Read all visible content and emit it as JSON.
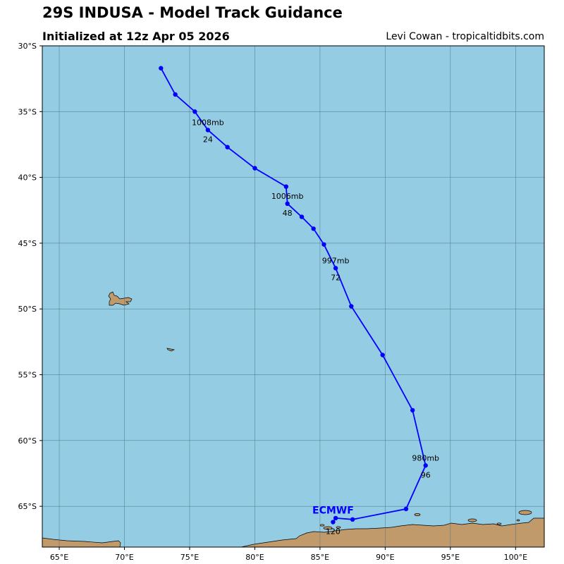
{
  "header": {
    "title": "29S INDUSA - Model Track Guidance",
    "subtitle": "Initialized at 12z Apr 05 2026",
    "credit": "Levi Cowan - tropicaltidbits.com"
  },
  "colors": {
    "ocean": "#94cde3",
    "land": "#c19a6b",
    "grid": "#4a6f80",
    "track": "#0000ff"
  },
  "map": {
    "lon_range": [
      63.7,
      102.2
    ],
    "lat_range": [
      -68.1,
      -30.0
    ],
    "lon_ticks": [
      {
        "v": 65,
        "label": "65°E"
      },
      {
        "v": 70,
        "label": "70°E"
      },
      {
        "v": 75,
        "label": "75°E"
      },
      {
        "v": 80,
        "label": "80°E"
      },
      {
        "v": 85,
        "label": "85°E"
      },
      {
        "v": 90,
        "label": "90°E"
      },
      {
        "v": 95,
        "label": "95°E"
      },
      {
        "v": 100,
        "label": "100°E"
      }
    ],
    "lat_ticks": [
      {
        "v": -30,
        "label": "30°S"
      },
      {
        "v": -35,
        "label": "35°S"
      },
      {
        "v": -40,
        "label": "40°S"
      },
      {
        "v": -45,
        "label": "45°S"
      },
      {
        "v": -50,
        "label": "50°S"
      },
      {
        "v": -55,
        "label": "55°S"
      },
      {
        "v": -60,
        "label": "60°S"
      },
      {
        "v": -65,
        "label": "65°S"
      }
    ]
  },
  "track": {
    "model": "ECMWF",
    "points": [
      {
        "lon": 72.8,
        "lat": -31.7
      },
      {
        "lon": 73.9,
        "lat": -33.7
      },
      {
        "lon": 75.4,
        "lat": -35.0
      },
      {
        "lon": 76.4,
        "lat": -36.4
      },
      {
        "lon": 77.9,
        "lat": -37.7
      },
      {
        "lon": 80.0,
        "lat": -39.3
      },
      {
        "lon": 82.4,
        "lat": -40.7
      },
      {
        "lon": 82.5,
        "lat": -42.0
      },
      {
        "lon": 83.6,
        "lat": -43.0
      },
      {
        "lon": 84.5,
        "lat": -43.9
      },
      {
        "lon": 85.3,
        "lat": -45.1
      },
      {
        "lon": 86.2,
        "lat": -46.9
      },
      {
        "lon": 87.4,
        "lat": -49.8
      },
      {
        "lon": 89.8,
        "lat": -53.5
      },
      {
        "lon": 92.1,
        "lat": -57.7
      },
      {
        "lon": 93.1,
        "lat": -61.9
      },
      {
        "lon": 91.6,
        "lat": -65.2
      },
      {
        "lon": 87.5,
        "lat": -66.0
      },
      {
        "lon": 86.2,
        "lat": -65.9
      },
      {
        "lon": 86.0,
        "lat": -66.2
      }
    ],
    "annotations": [
      {
        "lon": 76.4,
        "lat": -36.4,
        "pressure": "1008mb",
        "hour": "24"
      },
      {
        "lon": 82.5,
        "lat": -42.0,
        "pressure": "1006mb",
        "hour": "48"
      },
      {
        "lon": 86.2,
        "lat": -46.9,
        "pressure": "997mb",
        "hour": "72"
      },
      {
        "lon": 93.1,
        "lat": -61.9,
        "pressure": "980mb",
        "hour": "96"
      },
      {
        "lon": 86.0,
        "lat": -66.2,
        "pressure": "",
        "hour": "120"
      }
    ]
  }
}
